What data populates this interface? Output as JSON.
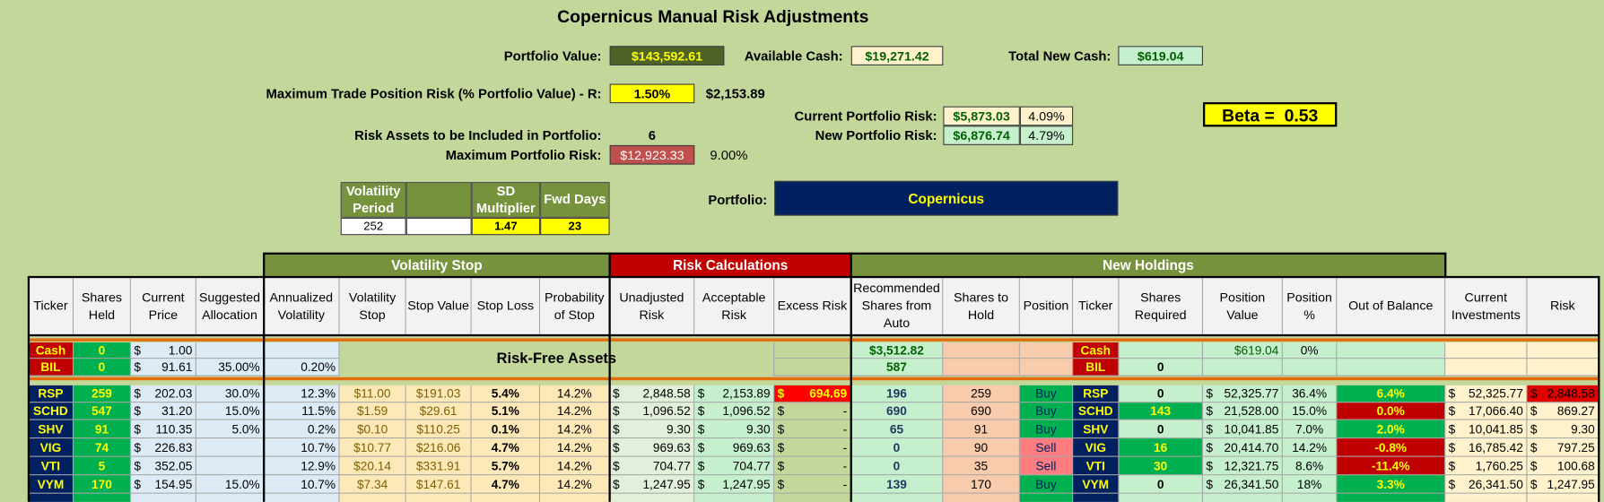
{
  "header": {
    "title": "Copernicus Manual Risk Adjustments",
    "portfolio_value": {
      "label": "Portfolio Value:",
      "value": "$143,592.61"
    },
    "available_cash": {
      "label": "Available Cash:",
      "value": "$19,271.42"
    },
    "total_new_cash": {
      "label": "Total New Cash:",
      "value": "$619.04"
    },
    "max_trade_risk": {
      "label": "Maximum Trade Position Risk (% Portfolio Value) - R:",
      "percent": "1.50%",
      "amount": "$2,153.89"
    },
    "current_portfolio_risk": {
      "label": "Current Portfolio Risk:",
      "amount": "$5,873.03",
      "percent": "4.09%"
    },
    "new_portfolio_risk": {
      "label": "New Portfolio Risk:",
      "amount": "$6,876.74",
      "percent": "4.79%"
    },
    "beta": "Beta =  0.53",
    "risk_assets": {
      "label": "Risk Assets to be Included in Portfolio:",
      "value": "6"
    },
    "max_portfolio_risk": {
      "label": "Maximum Portfolio Risk:",
      "amount": "$12,923.33",
      "percent": "9.00%"
    },
    "portfolio": {
      "label": "Portfolio:",
      "value": "Copernicus"
    }
  },
  "volatility_table": {
    "headers": [
      "Volatility Period",
      null,
      "SD Multiplier",
      "Fwd Days"
    ],
    "values": [
      "252",
      null,
      "1.47",
      "23"
    ]
  },
  "table": {
    "groups": [
      "Volatility Stop",
      "Risk Calculations",
      "New Holdings"
    ],
    "columns": [
      "Ticker",
      "Shares Held",
      "Current Price",
      "Suggested Allocation",
      "Annualized Volatility",
      "Volatility Stop",
      "Stop Value",
      "Stop Loss",
      "Probability of Stop",
      "Unadjusted Risk",
      "Acceptable Risk",
      "Excess Risk",
      "Recommended Shares from Auto",
      "Shares to Hold",
      "Position",
      "Ticker",
      "Shares Required",
      "Position Value",
      "Position %",
      "Out of Balance",
      "Current Investments",
      "Risk"
    ],
    "risk_free_label": "Risk-Free Assets",
    "cash_rows": [
      [
        "Cash",
        "0",
        "$ 1.00",
        null,
        null,
        null,
        null,
        null,
        null,
        null,
        null,
        null,
        "$3,512.82",
        null,
        null,
        "Cash",
        null,
        "$619.04",
        "0%",
        null,
        null,
        null
      ],
      [
        "BIL",
        "0",
        "$ 91.61",
        "35.00%",
        "0.20%",
        null,
        null,
        null,
        null,
        null,
        null,
        null,
        "587",
        null,
        null,
        "BIL",
        "0",
        null,
        null,
        null,
        null,
        null
      ]
    ],
    "rows": [
      [
        "RSP",
        "259",
        "$ 202.03",
        "30.0%",
        "12.3%",
        "$11.00",
        "$191.03",
        "5.4%",
        "14.2%",
        "$ 2,848.58",
        "$ 2,153.89",
        "$ 694.69",
        "196",
        "259",
        "Buy",
        "RSP",
        "0",
        "$ 52,325.77",
        "36.4%",
        "6.4%",
        "$ 52,325.77",
        "$ 2,848.58"
      ],
      [
        "SCHD",
        "547",
        "$ 31.20",
        "15.0%",
        "11.5%",
        "$1.59",
        "$29.61",
        "5.1%",
        "14.2%",
        "$ 1,096.52",
        "$ 1,096.52",
        "$ -",
        "690",
        "690",
        "Buy",
        "SCHD",
        "143",
        "$ 21,528.00",
        "15.0%",
        "0.0%",
        "$ 17,066.40",
        "$ 869.27"
      ],
      [
        "SHV",
        "91",
        "$ 110.35",
        "5.0%",
        "0.2%",
        "$0.10",
        "$110.25",
        "0.1%",
        "14.2%",
        "$ 9.30",
        "$ 9.30",
        "$ -",
        "65",
        "91",
        "Buy",
        "SHV",
        "0",
        "$ 10,041.85",
        "7.0%",
        "2.0%",
        "$ 10,041.85",
        "$ 9.30"
      ],
      [
        "VIG",
        "74",
        "$ 226.83",
        null,
        "10.7%",
        "$10.77",
        "$216.06",
        "4.7%",
        "14.2%",
        "$ 969.63",
        "$ 969.63",
        "$ -",
        "0",
        "90",
        "Sell",
        "VIG",
        "16",
        "$ 20,414.70",
        "14.2%",
        "-0.8%",
        "$ 16,785.42",
        "$ 797.25"
      ],
      [
        "VTI",
        "5",
        "$ 352.05",
        null,
        "12.9%",
        "$20.14",
        "$331.91",
        "5.7%",
        "14.2%",
        "$ 704.77",
        "$ 704.77",
        "$ -",
        "0",
        "35",
        "Sell",
        "VTI",
        "30",
        "$ 12,321.75",
        "8.6%",
        "-11.4%",
        "$ 1,760.25",
        "$ 100.68"
      ],
      [
        "VYM",
        "170",
        "$ 154.95",
        "15.0%",
        "10.7%",
        "$7.34",
        "$147.61",
        "4.7%",
        "14.2%",
        "$ 1,247.95",
        "$ 1,247.95",
        "$ -",
        "139",
        "170",
        "Buy",
        "VYM",
        "0",
        "$ 26,341.50",
        "18%",
        "3.3%",
        "$ 26,341.50",
        "$ 1,247.95"
      ]
    ]
  }
}
